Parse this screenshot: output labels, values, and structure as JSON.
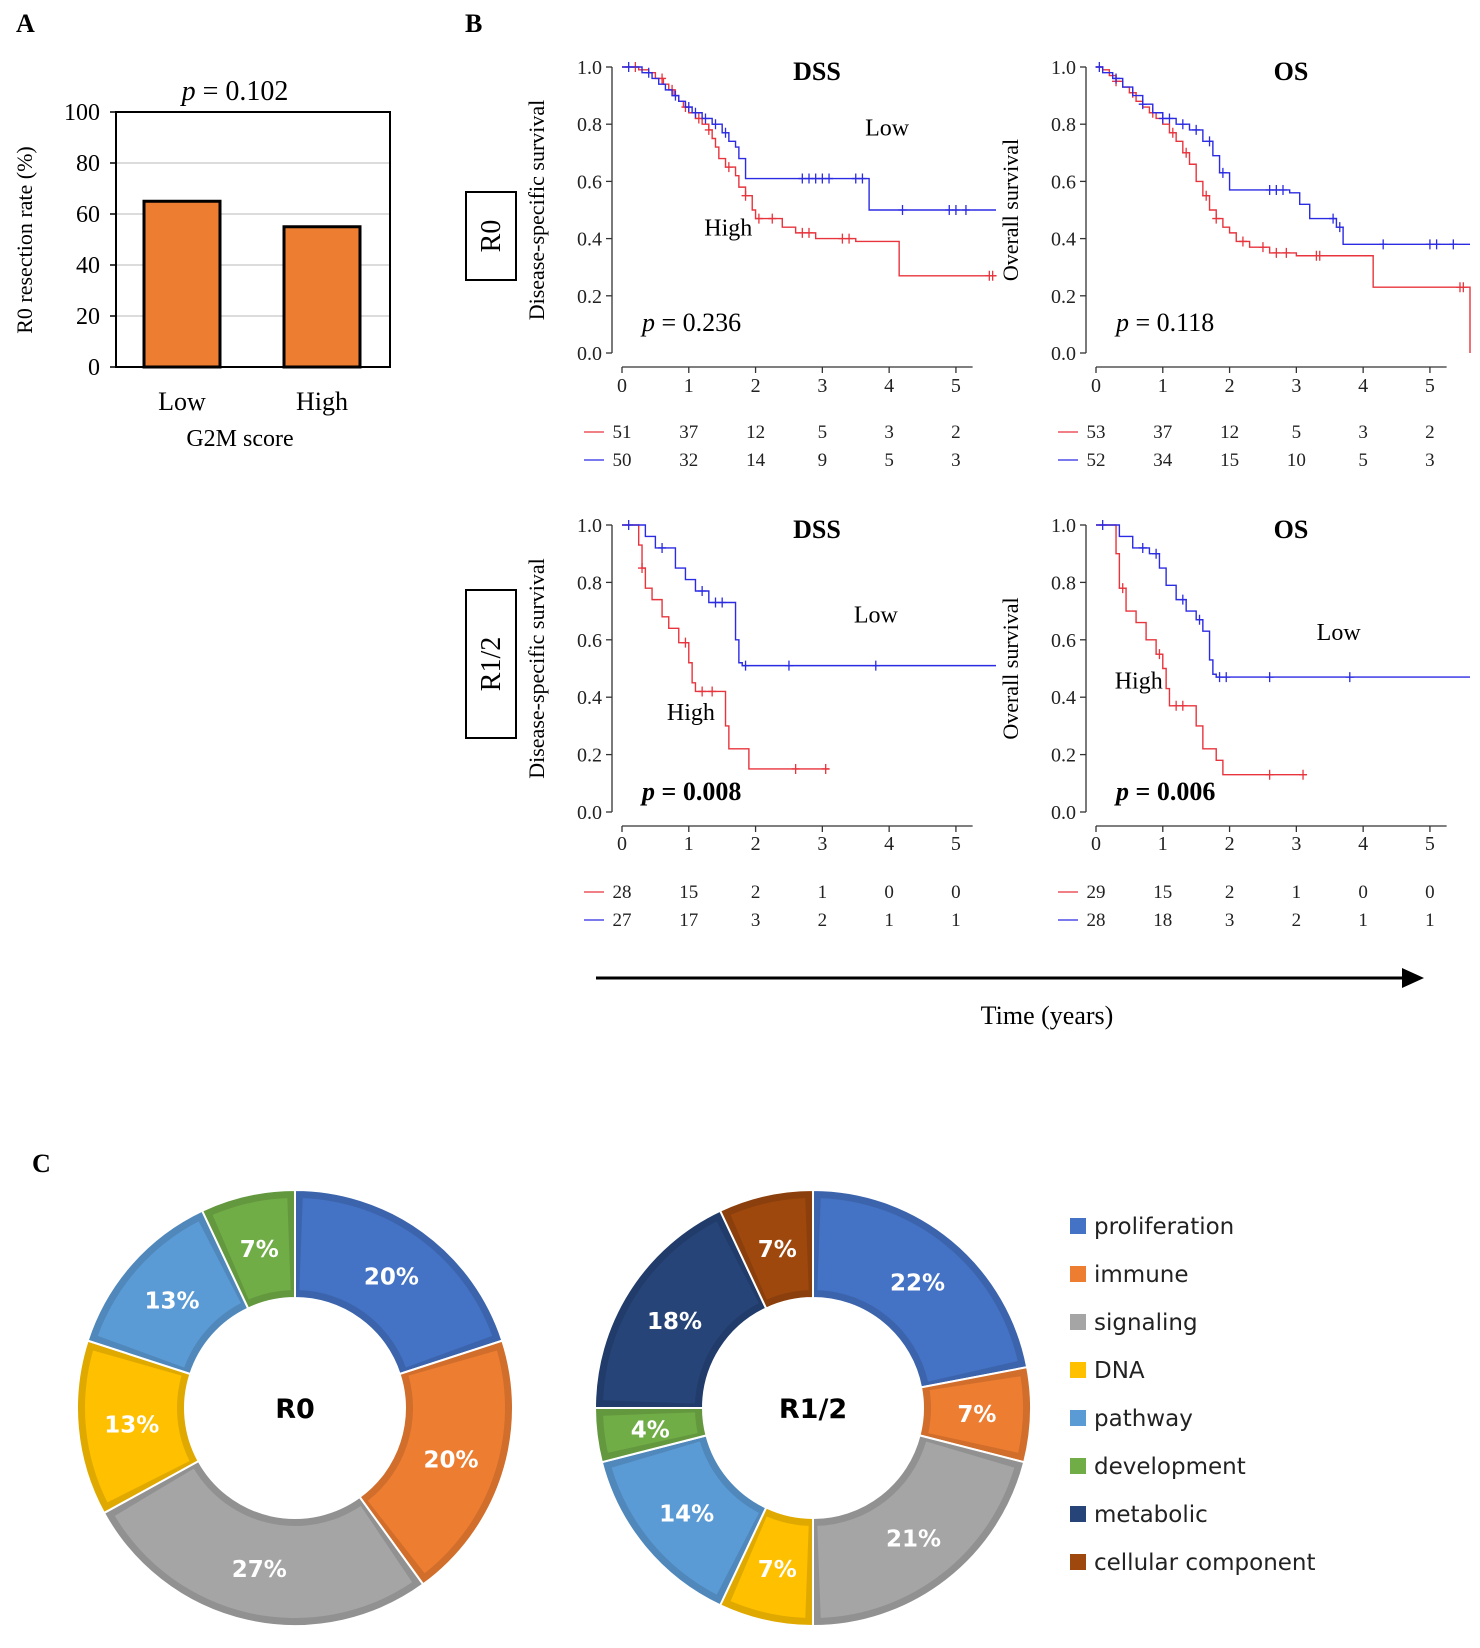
{
  "panel_labels": {
    "a": "A",
    "b": "B",
    "c": "C"
  },
  "colors": {
    "bar": "#ED7D31",
    "high": "#E8343C",
    "low": "#2B2BE3",
    "proliferation": "#4472C4",
    "immune": "#ED7D31",
    "signaling": "#A5A5A5",
    "dna": "#FFC000",
    "pathway": "#5B9BD5",
    "development": "#70AD47",
    "metabolic": "#264478",
    "cellular_component": "#9E480E"
  },
  "row_labels": {
    "r0": "R0",
    "r12": "R1/2"
  },
  "time_axis_label": "Time (years)",
  "chart_data": [
    {
      "id": "bar_r0",
      "type": "bar",
      "title_p": "p",
      "title_rest": " = 0.102",
      "categories": [
        "Low",
        "High"
      ],
      "values": [
        65,
        55
      ],
      "xlabel": "G2M score",
      "ylabel": "R0 resection rate (%)",
      "ylim": [
        0,
        100
      ],
      "yticks": [
        "0",
        "20",
        "40",
        "60",
        "80",
        "100"
      ],
      "grid": true
    },
    {
      "id": "km_r0_dss",
      "type": "line",
      "title": "DSS",
      "ylabel": "Disease-specific survival",
      "xlim": [
        0,
        5.6
      ],
      "ylim": [
        0,
        1
      ],
      "xticks": [
        "0",
        "1",
        "2",
        "3",
        "4",
        "5"
      ],
      "yticks": [
        "0.0",
        "0.2",
        "0.4",
        "0.6",
        "0.8",
        "1.0"
      ],
      "p_label": "p",
      "p_value": " = 0.236",
      "p_bold": false,
      "low_label": "Low",
      "high_label": "High",
      "series": [
        {
          "name": "High",
          "x": [
            0,
            0.15,
            0.25,
            0.4,
            0.5,
            0.62,
            0.7,
            0.78,
            0.85,
            0.92,
            1.0,
            1.1,
            1.2,
            1.3,
            1.35,
            1.4,
            1.45,
            1.55,
            1.7,
            1.75,
            1.85,
            1.95,
            2.0,
            2.4,
            2.6,
            2.9,
            3.2,
            3.5,
            3.8,
            4.1,
            4.15,
            5.6
          ],
          "y": [
            1.0,
            1.0,
            0.99,
            0.98,
            0.96,
            0.94,
            0.92,
            0.9,
            0.88,
            0.86,
            0.84,
            0.82,
            0.8,
            0.78,
            0.75,
            0.72,
            0.68,
            0.65,
            0.62,
            0.58,
            0.55,
            0.5,
            0.47,
            0.44,
            0.42,
            0.4,
            0.4,
            0.39,
            0.39,
            0.39,
            0.27,
            0.27
          ],
          "censor_x": [
            0.2,
            0.6,
            0.75,
            0.95,
            1.15,
            1.3,
            1.6,
            1.85,
            2.05,
            2.25,
            2.7,
            2.8,
            3.3,
            3.4,
            5.5,
            5.55
          ]
        },
        {
          "name": "Low",
          "x": [
            0,
            0.2,
            0.3,
            0.45,
            0.55,
            0.65,
            0.75,
            0.85,
            0.95,
            1.05,
            1.2,
            1.35,
            1.5,
            1.6,
            1.7,
            1.75,
            1.85,
            3.65,
            3.7,
            5.6
          ],
          "y": [
            1.0,
            1.0,
            0.98,
            0.96,
            0.94,
            0.92,
            0.9,
            0.88,
            0.86,
            0.84,
            0.82,
            0.8,
            0.77,
            0.74,
            0.72,
            0.68,
            0.61,
            0.61,
            0.5,
            0.5
          ],
          "censor_x": [
            0.1,
            0.4,
            0.8,
            1.0,
            1.1,
            1.25,
            1.4,
            1.55,
            2.7,
            2.8,
            2.9,
            3.0,
            3.1,
            3.5,
            3.6,
            4.2,
            4.9,
            5.0,
            5.15
          ]
        }
      ],
      "risk_table": {
        "high": [
          "51",
          "37",
          "12",
          "5",
          "3",
          "2"
        ],
        "low": [
          "50",
          "32",
          "14",
          "9",
          "5",
          "3"
        ]
      }
    },
    {
      "id": "km_r0_os",
      "type": "line",
      "title": "OS",
      "ylabel": "Overall survival",
      "xlim": [
        0,
        5.6
      ],
      "ylim": [
        0,
        1
      ],
      "xticks": [
        "0",
        "1",
        "2",
        "3",
        "4",
        "5"
      ],
      "yticks": [
        "0.0",
        "0.2",
        "0.4",
        "0.6",
        "0.8",
        "1.0"
      ],
      "p_label": "p",
      "p_value": " = 0.118",
      "p_bold": false,
      "low_label": "",
      "high_label": "",
      "series": [
        {
          "name": "High",
          "x": [
            0,
            0.1,
            0.2,
            0.3,
            0.4,
            0.5,
            0.6,
            0.7,
            0.8,
            0.9,
            1.0,
            1.1,
            1.2,
            1.3,
            1.4,
            1.5,
            1.6,
            1.7,
            1.8,
            1.9,
            2.0,
            2.1,
            2.3,
            2.6,
            3.0,
            3.5,
            4.1,
            4.15,
            5.5,
            5.6
          ],
          "y": [
            1.0,
            0.99,
            0.97,
            0.95,
            0.93,
            0.91,
            0.88,
            0.86,
            0.84,
            0.82,
            0.8,
            0.77,
            0.74,
            0.7,
            0.66,
            0.6,
            0.55,
            0.5,
            0.47,
            0.44,
            0.42,
            0.39,
            0.37,
            0.35,
            0.34,
            0.34,
            0.34,
            0.23,
            0.23,
            0.0
          ],
          "censor_x": [
            0.3,
            0.55,
            0.85,
            1.15,
            1.35,
            1.65,
            1.8,
            2.2,
            2.5,
            2.7,
            2.85,
            3.3,
            3.35,
            5.45,
            5.5
          ]
        },
        {
          "name": "Low",
          "x": [
            0,
            0.1,
            0.25,
            0.4,
            0.55,
            0.7,
            0.85,
            1.0,
            1.2,
            1.4,
            1.6,
            1.75,
            1.85,
            2.0,
            2.5,
            2.9,
            3.05,
            3.2,
            3.6,
            3.7,
            5.6
          ],
          "y": [
            1.0,
            0.98,
            0.96,
            0.93,
            0.9,
            0.87,
            0.84,
            0.82,
            0.8,
            0.78,
            0.74,
            0.69,
            0.63,
            0.57,
            0.57,
            0.56,
            0.52,
            0.47,
            0.44,
            0.38,
            0.38
          ],
          "censor_x": [
            0.05,
            0.3,
            0.7,
            1.0,
            1.1,
            1.3,
            1.5,
            1.7,
            1.9,
            2.6,
            2.7,
            2.8,
            3.55,
            3.65,
            4.3,
            5.0,
            5.1,
            5.35
          ]
        }
      ],
      "risk_table": {
        "high": [
          "53",
          "37",
          "12",
          "5",
          "3",
          "2"
        ],
        "low": [
          "52",
          "34",
          "15",
          "10",
          "5",
          "3"
        ]
      }
    },
    {
      "id": "km_r12_dss",
      "type": "line",
      "title": "DSS",
      "ylabel": "Disease-specific survival",
      "xlim": [
        0,
        5.6
      ],
      "ylim": [
        0,
        1
      ],
      "xticks": [
        "0",
        "1",
        "2",
        "3",
        "4",
        "5"
      ],
      "yticks": [
        "0.0",
        "0.2",
        "0.4",
        "0.6",
        "0.8",
        "1.0"
      ],
      "p_label": "p",
      "p_value": " = 0.008",
      "p_bold": true,
      "low_label": "Low",
      "high_label": "High",
      "series": [
        {
          "name": "High",
          "x": [
            0,
            0.2,
            0.25,
            0.3,
            0.35,
            0.45,
            0.6,
            0.7,
            0.85,
            1.0,
            1.05,
            1.1,
            1.5,
            1.55,
            1.6,
            1.9,
            3.1
          ],
          "y": [
            1.0,
            1.0,
            0.93,
            0.85,
            0.78,
            0.74,
            0.68,
            0.64,
            0.59,
            0.52,
            0.45,
            0.42,
            0.42,
            0.3,
            0.22,
            0.15,
            0.15
          ],
          "censor_x": [
            0.3,
            0.95,
            1.2,
            1.35,
            2.6,
            3.05
          ]
        },
        {
          "name": "Low",
          "x": [
            0,
            0.25,
            0.35,
            0.5,
            0.65,
            0.8,
            0.95,
            1.1,
            1.3,
            1.6,
            1.7,
            1.75,
            1.8,
            5.6
          ],
          "y": [
            1.0,
            1.0,
            0.96,
            0.92,
            0.92,
            0.85,
            0.81,
            0.77,
            0.73,
            0.73,
            0.6,
            0.52,
            0.51,
            0.51
          ],
          "censor_x": [
            0.1,
            0.6,
            1.2,
            1.4,
            1.5,
            1.85,
            2.5,
            3.8
          ]
        }
      ],
      "risk_table": {
        "high": [
          "28",
          "15",
          "2",
          "1",
          "0",
          "0"
        ],
        "low": [
          "27",
          "17",
          "3",
          "2",
          "1",
          "1"
        ]
      }
    },
    {
      "id": "km_r12_os",
      "type": "line",
      "title": "OS",
      "ylabel": "Overall survival",
      "xlim": [
        0,
        5.6
      ],
      "ylim": [
        0,
        1
      ],
      "xticks": [
        "0",
        "1",
        "2",
        "3",
        "4",
        "5"
      ],
      "yticks": [
        "0.0",
        "0.2",
        "0.4",
        "0.6",
        "0.8",
        "1.0"
      ],
      "p_label": "p",
      "p_value": " = 0.006",
      "p_bold": true,
      "low_label": "Low",
      "high_label": "High",
      "series": [
        {
          "name": "High",
          "x": [
            0,
            0.25,
            0.3,
            0.35,
            0.45,
            0.6,
            0.75,
            0.9,
            1.0,
            1.05,
            1.1,
            1.4,
            1.5,
            1.6,
            1.8,
            1.9,
            3.15
          ],
          "y": [
            1.0,
            1.0,
            0.9,
            0.78,
            0.7,
            0.66,
            0.6,
            0.55,
            0.5,
            0.43,
            0.37,
            0.37,
            0.3,
            0.22,
            0.18,
            0.13,
            0.13
          ],
          "censor_x": [
            0.4,
            0.95,
            1.2,
            1.3,
            2.6,
            3.1
          ]
        },
        {
          "name": "Low",
          "x": [
            0,
            0.25,
            0.35,
            0.55,
            0.8,
            0.95,
            1.05,
            1.2,
            1.35,
            1.5,
            1.6,
            1.7,
            1.75,
            1.8,
            5.6
          ],
          "y": [
            1.0,
            1.0,
            0.96,
            0.92,
            0.9,
            0.85,
            0.79,
            0.74,
            0.7,
            0.67,
            0.63,
            0.53,
            0.48,
            0.47,
            0.47
          ],
          "censor_x": [
            0.1,
            0.7,
            0.9,
            1.3,
            1.55,
            1.85,
            1.95,
            2.6,
            3.8
          ]
        }
      ],
      "risk_table": {
        "high": [
          "29",
          "15",
          "2",
          "1",
          "0",
          "0"
        ],
        "low": [
          "28",
          "18",
          "3",
          "2",
          "1",
          "1"
        ]
      }
    },
    {
      "id": "donut_r0",
      "type": "pie",
      "center_label": "R0",
      "slices": [
        {
          "key": "proliferation",
          "value": 20,
          "label": "20%"
        },
        {
          "key": "immune",
          "value": 20,
          "label": "20%"
        },
        {
          "key": "signaling",
          "value": 27,
          "label": "27%"
        },
        {
          "key": "dna",
          "value": 13,
          "label": "13%"
        },
        {
          "key": "pathway",
          "value": 13,
          "label": "13%"
        },
        {
          "key": "development",
          "value": 7,
          "label": "7%"
        }
      ]
    },
    {
      "id": "donut_r12",
      "type": "pie",
      "center_label": "R1/2",
      "slices": [
        {
          "key": "proliferation",
          "value": 22,
          "label": "22%"
        },
        {
          "key": "immune",
          "value": 7,
          "label": "7%"
        },
        {
          "key": "signaling",
          "value": 21,
          "label": "21%"
        },
        {
          "key": "dna",
          "value": 7,
          "label": "7%"
        },
        {
          "key": "pathway",
          "value": 14,
          "label": "14%"
        },
        {
          "key": "development",
          "value": 4,
          "label": "4%"
        },
        {
          "key": "metabolic",
          "value": 18,
          "label": "18%"
        },
        {
          "key": "cellular_component",
          "value": 7,
          "label": "7%"
        }
      ]
    }
  ],
  "legend": [
    {
      "key": "proliferation",
      "label": "proliferation"
    },
    {
      "key": "immune",
      "label": "immune"
    },
    {
      "key": "signaling",
      "label": "signaling"
    },
    {
      "key": "dna",
      "label": "DNA"
    },
    {
      "key": "pathway",
      "label": "pathway"
    },
    {
      "key": "development",
      "label": "development"
    },
    {
      "key": "metabolic",
      "label": "metabolic"
    },
    {
      "key": "cellular_component",
      "label": "cellular component"
    }
  ]
}
